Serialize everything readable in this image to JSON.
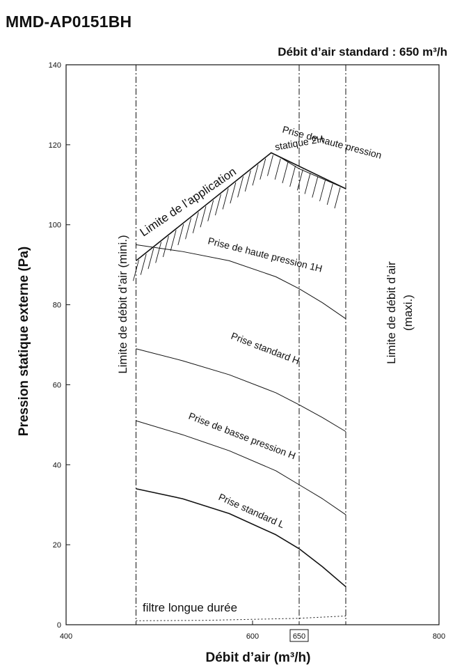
{
  "model": "MMD-AP0151BH",
  "chart_data": {
    "type": "line",
    "subtitle": "Débit d’air standard : 650 m³/h",
    "xlabel": "Débit d’air (m³/h)",
    "ylabel": "Pression statique externe (Pa)",
    "xlim": [
      400,
      800
    ],
    "ylim": [
      0,
      140
    ],
    "x_ticks": [
      400,
      600,
      800
    ],
    "y_ticks": [
      0,
      20,
      40,
      60,
      80,
      100,
      120,
      140
    ],
    "boxed_tick": 650,
    "grid": false,
    "vertical_lines": [
      {
        "x": 475,
        "label": "Limite de débit d’air (mini.)"
      },
      {
        "x": 650,
        "label": ""
      },
      {
        "x": 700,
        "label": "Limite de débit d’air (maxi.)"
      }
    ],
    "limit_label_max_line1": "Limite de débit d’air",
    "limit_label_max_line2": "(maxi.)",
    "application_limit": {
      "label": "Limite de l’application",
      "x": [
        475,
        620,
        700
      ],
      "y": [
        91,
        118,
        109
      ]
    },
    "series": [
      {
        "name": "Prise de haute pression statique 2H",
        "label_line1": "Prise de haute pression",
        "label_line2": "statique 2H",
        "x": [
          625,
          650,
          675,
          700
        ],
        "y": [
          117.5,
          114,
          111.5,
          109
        ]
      },
      {
        "name": "Prise de haute pression 1H",
        "x": [
          475,
          525,
          575,
          625,
          650,
          675,
          700
        ],
        "y": [
          95,
          93.3,
          91,
          87,
          84,
          80.5,
          76.5
        ]
      },
      {
        "name": "Prise standard H",
        "x": [
          475,
          525,
          575,
          625,
          650,
          675,
          700
        ],
        "y": [
          69,
          66,
          62.5,
          58,
          55,
          51.8,
          48.3
        ]
      },
      {
        "name": "Prise de basse pression H",
        "x": [
          475,
          525,
          575,
          625,
          650,
          675,
          700
        ],
        "y": [
          51,
          47.5,
          43.5,
          38.5,
          35,
          31.5,
          27.5
        ]
      },
      {
        "name": "Prise standard L",
        "x": [
          475,
          525,
          575,
          625,
          650,
          675,
          700
        ],
        "y": [
          34,
          31.5,
          27.8,
          22.5,
          19,
          14.5,
          9.5
        ]
      },
      {
        "name": "filtre longue durée",
        "x": [
          475,
          550,
          650,
          700
        ],
        "y": [
          1,
          1.1,
          1.6,
          2.2
        ]
      }
    ]
  }
}
